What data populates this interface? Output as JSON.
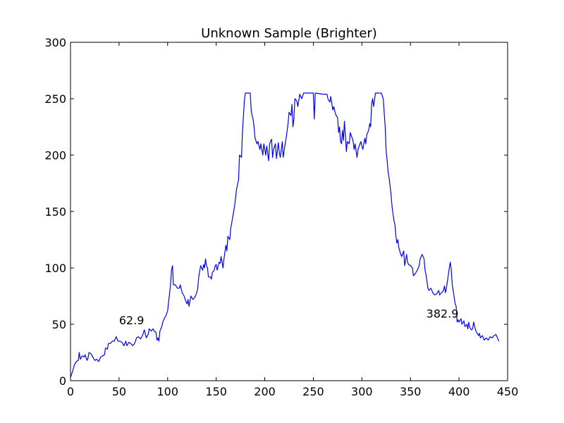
{
  "chart_data": {
    "type": "line",
    "title": "Unknown Sample (Brighter)",
    "xlabel": "",
    "ylabel": "",
    "xlim": [
      0,
      450
    ],
    "ylim": [
      0,
      300
    ],
    "xticks": [
      0,
      50,
      100,
      150,
      200,
      250,
      300,
      350,
      400,
      450
    ],
    "yticks": [
      0,
      50,
      100,
      150,
      200,
      250,
      300
    ],
    "grid": false,
    "legend": "none",
    "series_color": "#0000ff",
    "series": [
      {
        "values": [
          [
            0,
            3
          ],
          [
            2,
            8
          ],
          [
            4,
            14
          ],
          [
            6,
            17
          ],
          [
            8,
            18
          ],
          [
            9,
            25
          ],
          [
            10,
            19
          ],
          [
            12,
            22
          ],
          [
            14,
            21
          ],
          [
            15,
            23
          ],
          [
            17,
            18
          ],
          [
            18,
            20
          ],
          [
            19,
            25
          ],
          [
            21,
            24
          ],
          [
            23,
            21
          ],
          [
            25,
            18
          ],
          [
            27,
            19
          ],
          [
            29,
            17
          ],
          [
            31,
            21
          ],
          [
            33,
            22
          ],
          [
            35,
            23
          ],
          [
            36,
            29
          ],
          [
            38,
            28
          ],
          [
            39,
            33
          ],
          [
            41,
            33
          ],
          [
            43,
            35
          ],
          [
            45,
            35
          ],
          [
            47,
            39
          ],
          [
            49,
            35
          ],
          [
            51,
            35
          ],
          [
            53,
            34
          ],
          [
            55,
            31
          ],
          [
            57,
            35
          ],
          [
            58,
            31
          ],
          [
            60,
            34
          ],
          [
            62,
            33
          ],
          [
            64,
            31
          ],
          [
            66,
            33
          ],
          [
            68,
            38
          ],
          [
            70,
            39
          ],
          [
            72,
            37
          ],
          [
            74,
            40
          ],
          [
            76,
            45
          ],
          [
            78,
            38
          ],
          [
            80,
            41
          ],
          [
            81,
            46
          ],
          [
            83,
            44
          ],
          [
            85,
            46
          ],
          [
            86,
            44
          ],
          [
            88,
            43
          ],
          [
            89,
            36
          ],
          [
            90,
            38
          ],
          [
            91,
            35
          ],
          [
            92,
            44
          ],
          [
            94,
            48
          ],
          [
            95,
            52
          ],
          [
            97,
            56
          ],
          [
            98,
            57
          ],
          [
            100,
            62
          ],
          [
            101,
            70
          ],
          [
            103,
            85
          ],
          [
            104,
            98
          ],
          [
            105,
            102
          ],
          [
            106,
            85
          ],
          [
            108,
            85
          ],
          [
            110,
            82
          ],
          [
            112,
            82
          ],
          [
            113,
            85
          ],
          [
            115,
            78
          ],
          [
            117,
            75
          ],
          [
            118,
            72
          ],
          [
            120,
            68
          ],
          [
            121,
            72
          ],
          [
            122,
            66
          ],
          [
            124,
            75
          ],
          [
            126,
            72
          ],
          [
            128,
            74
          ],
          [
            130,
            78
          ],
          [
            131,
            82
          ],
          [
            132,
            92
          ],
          [
            134,
            102
          ],
          [
            136,
            98
          ],
          [
            137,
            103
          ],
          [
            138,
            100
          ],
          [
            139,
            108
          ],
          [
            140,
            102
          ],
          [
            141,
            100
          ],
          [
            142,
            92
          ],
          [
            144,
            92
          ],
          [
            145,
            90
          ],
          [
            146,
            96
          ],
          [
            148,
            98
          ],
          [
            149,
            102
          ],
          [
            150,
            103
          ],
          [
            151,
            98
          ],
          [
            153,
            105
          ],
          [
            154,
            104
          ],
          [
            155,
            110
          ],
          [
            157,
            100
          ],
          [
            158,
            108
          ],
          [
            160,
            120
          ],
          [
            161,
            115
          ],
          [
            162,
            128
          ],
          [
            164,
            125
          ],
          [
            165,
            135
          ],
          [
            167,
            145
          ],
          [
            169,
            155
          ],
          [
            171,
            170
          ],
          [
            173,
            178
          ],
          [
            174,
            200
          ],
          [
            176,
            198
          ],
          [
            177,
            220
          ],
          [
            179,
            248
          ],
          [
            180,
            255
          ],
          [
            185,
            255
          ],
          [
            186,
            240
          ],
          [
            187,
            235
          ],
          [
            188,
            232
          ],
          [
            189,
            225
          ],
          [
            190,
            215
          ],
          [
            192,
            210
          ],
          [
            193,
            212
          ],
          [
            195,
            205
          ],
          [
            196,
            210
          ],
          [
            198,
            200
          ],
          [
            199,
            210
          ],
          [
            201,
            200
          ],
          [
            202,
            208
          ],
          [
            204,
            195
          ],
          [
            205,
            210
          ],
          [
            207,
            214
          ],
          [
            208,
            198
          ],
          [
            209,
            205
          ],
          [
            211,
            210
          ],
          [
            212,
            197
          ],
          [
            214,
            211
          ],
          [
            215,
            202
          ],
          [
            216,
            198
          ],
          [
            218,
            212
          ],
          [
            219,
            198
          ],
          [
            221,
            210
          ],
          [
            222,
            215
          ],
          [
            224,
            228
          ],
          [
            225,
            238
          ],
          [
            227,
            235
          ],
          [
            228,
            245
          ],
          [
            229,
            225
          ],
          [
            230,
            232
          ],
          [
            231,
            250
          ],
          [
            233,
            248
          ],
          [
            234,
            243
          ],
          [
            236,
            254
          ],
          [
            238,
            250
          ],
          [
            240,
            255
          ],
          [
            250,
            255
          ],
          [
            251,
            232
          ],
          [
            252,
            255
          ],
          [
            260,
            254
          ],
          [
            262,
            254
          ],
          [
            264,
            254
          ],
          [
            265,
            250
          ],
          [
            267,
            247
          ],
          [
            268,
            252
          ],
          [
            270,
            240
          ],
          [
            271,
            243
          ],
          [
            273,
            236
          ],
          [
            275,
            233
          ],
          [
            276,
            220
          ],
          [
            277,
            225
          ],
          [
            278,
            212
          ],
          [
            279,
            210
          ],
          [
            280,
            222
          ],
          [
            281,
            213
          ],
          [
            282,
            230
          ],
          [
            283,
            218
          ],
          [
            284,
            203
          ],
          [
            285,
            212
          ],
          [
            287,
            210
          ],
          [
            288,
            220
          ],
          [
            290,
            215
          ],
          [
            291,
            212
          ],
          [
            292,
            205
          ],
          [
            293,
            210
          ],
          [
            295,
            198
          ],
          [
            296,
            205
          ],
          [
            298,
            210
          ],
          [
            299,
            212
          ],
          [
            300,
            208
          ],
          [
            301,
            205
          ],
          [
            303,
            215
          ],
          [
            304,
            210
          ],
          [
            305,
            218
          ],
          [
            307,
            222
          ],
          [
            308,
            228
          ],
          [
            309,
            225
          ],
          [
            310,
            245
          ],
          [
            311,
            250
          ],
          [
            312,
            243
          ],
          [
            314,
            255
          ],
          [
            320,
            255
          ],
          [
            322,
            250
          ],
          [
            324,
            225
          ],
          [
            325,
            203
          ],
          [
            326,
            195
          ],
          [
            327,
            185
          ],
          [
            328,
            180
          ],
          [
            330,
            165
          ],
          [
            331,
            155
          ],
          [
            332,
            148
          ],
          [
            333,
            142
          ],
          [
            334,
            138
          ],
          [
            335,
            128
          ],
          [
            336,
            122
          ],
          [
            337,
            125
          ],
          [
            338,
            118
          ],
          [
            340,
            112
          ],
          [
            341,
            110
          ],
          [
            343,
            115
          ],
          [
            344,
            102
          ],
          [
            346,
            112
          ],
          [
            347,
            105
          ],
          [
            348,
            103
          ],
          [
            350,
            102
          ],
          [
            352,
            100
          ],
          [
            353,
            93
          ],
          [
            355,
            95
          ],
          [
            357,
            98
          ],
          [
            359,
            102
          ],
          [
            360,
            108
          ],
          [
            362,
            112
          ],
          [
            364,
            108
          ],
          [
            365,
            98
          ],
          [
            366,
            94
          ],
          [
            367,
            88
          ],
          [
            368,
            82
          ],
          [
            369,
            80
          ],
          [
            371,
            82
          ],
          [
            373,
            78
          ],
          [
            375,
            76
          ],
          [
            377,
            77
          ],
          [
            379,
            80
          ],
          [
            380,
            76
          ],
          [
            382,
            78
          ],
          [
            384,
            80
          ],
          [
            385,
            84
          ],
          [
            386,
            78
          ],
          [
            387,
            82
          ],
          [
            388,
            88
          ],
          [
            390,
            100
          ],
          [
            391,
            105
          ],
          [
            392,
            98
          ],
          [
            393,
            85
          ],
          [
            394,
            80
          ],
          [
            396,
            68
          ],
          [
            397,
            66
          ],
          [
            398,
            52
          ],
          [
            399,
            54
          ],
          [
            400,
            52
          ],
          [
            402,
            55
          ],
          [
            403,
            50
          ],
          [
            405,
            53
          ],
          [
            406,
            48
          ],
          [
            408,
            50
          ],
          [
            409,
            46
          ],
          [
            410,
            52
          ],
          [
            411,
            47
          ],
          [
            413,
            45
          ],
          [
            414,
            46
          ],
          [
            415,
            52
          ],
          [
            417,
            45
          ],
          [
            418,
            43
          ],
          [
            420,
            40
          ],
          [
            421,
            42
          ],
          [
            422,
            38
          ],
          [
            424,
            40
          ],
          [
            426,
            36
          ],
          [
            428,
            38
          ],
          [
            430,
            36
          ],
          [
            432,
            39
          ],
          [
            434,
            38
          ],
          [
            436,
            40
          ],
          [
            438,
            41
          ],
          [
            440,
            37
          ],
          [
            441,
            35
          ]
        ]
      }
    ],
    "annotations": [
      {
        "text": "62.9",
        "x": 62.9,
        "y": 50
      },
      {
        "text": "382.9",
        "x": 382.9,
        "y": 56
      }
    ]
  }
}
